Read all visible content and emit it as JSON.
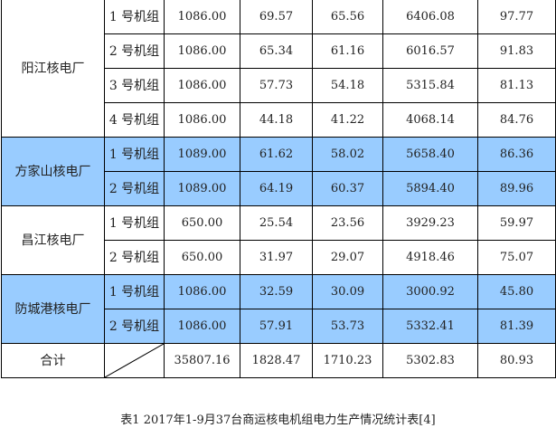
{
  "colors": {
    "highlight": "#99ccff",
    "border": "#000000"
  },
  "plants": [
    {
      "name": "阳江核电厂",
      "highlight": false,
      "units": [
        {
          "unit": "1 号机组",
          "capacity": "1086.00",
          "v1": "69.57",
          "v2": "65.56",
          "hours": "6406.08",
          "rate": "97.77"
        },
        {
          "unit": "2 号机组",
          "capacity": "1086.00",
          "v1": "65.34",
          "v2": "61.16",
          "hours": "6016.57",
          "rate": "91.83"
        },
        {
          "unit": "3 号机组",
          "capacity": "1086.00",
          "v1": "57.73",
          "v2": "54.18",
          "hours": "5315.84",
          "rate": "81.13"
        },
        {
          "unit": "4 号机组",
          "capacity": "1086.00",
          "v1": "44.18",
          "v2": "41.22",
          "hours": "4068.14",
          "rate": "84.76"
        }
      ]
    },
    {
      "name": "方家山核电厂",
      "highlight": true,
      "units": [
        {
          "unit": "1 号机组",
          "capacity": "1089.00",
          "v1": "61.62",
          "v2": "58.02",
          "hours": "5658.40",
          "rate": "86.36"
        },
        {
          "unit": "2 号机组",
          "capacity": "1089.00",
          "v1": "64.19",
          "v2": "60.37",
          "hours": "5894.40",
          "rate": "89.96"
        }
      ]
    },
    {
      "name": "昌江核电厂",
      "highlight": false,
      "units": [
        {
          "unit": "1 号机组",
          "capacity": "650.00",
          "v1": "25.54",
          "v2": "23.56",
          "hours": "3929.23",
          "rate": "59.97"
        },
        {
          "unit": "2 号机组",
          "capacity": "650.00",
          "v1": "31.97",
          "v2": "29.07",
          "hours": "4918.46",
          "rate": "75.07"
        }
      ]
    },
    {
      "name": "防城港核电厂",
      "highlight": true,
      "units": [
        {
          "unit": "1 号机组",
          "capacity": "1086.00",
          "v1": "32.59",
          "v2": "30.09",
          "hours": "3000.92",
          "rate": "45.80"
        },
        {
          "unit": "2 号机组",
          "capacity": "1086.00",
          "v1": "57.91",
          "v2": "53.73",
          "hours": "5332.41",
          "rate": "81.39"
        }
      ]
    }
  ],
  "total": {
    "label": "合计",
    "capacity": "35807.16",
    "v1": "1828.47",
    "v2": "1710.23",
    "hours": "5302.83",
    "rate": "80.93"
  },
  "caption": "表1 2017年1-9月37台商运核电机组电力生产情况统计表[4]"
}
